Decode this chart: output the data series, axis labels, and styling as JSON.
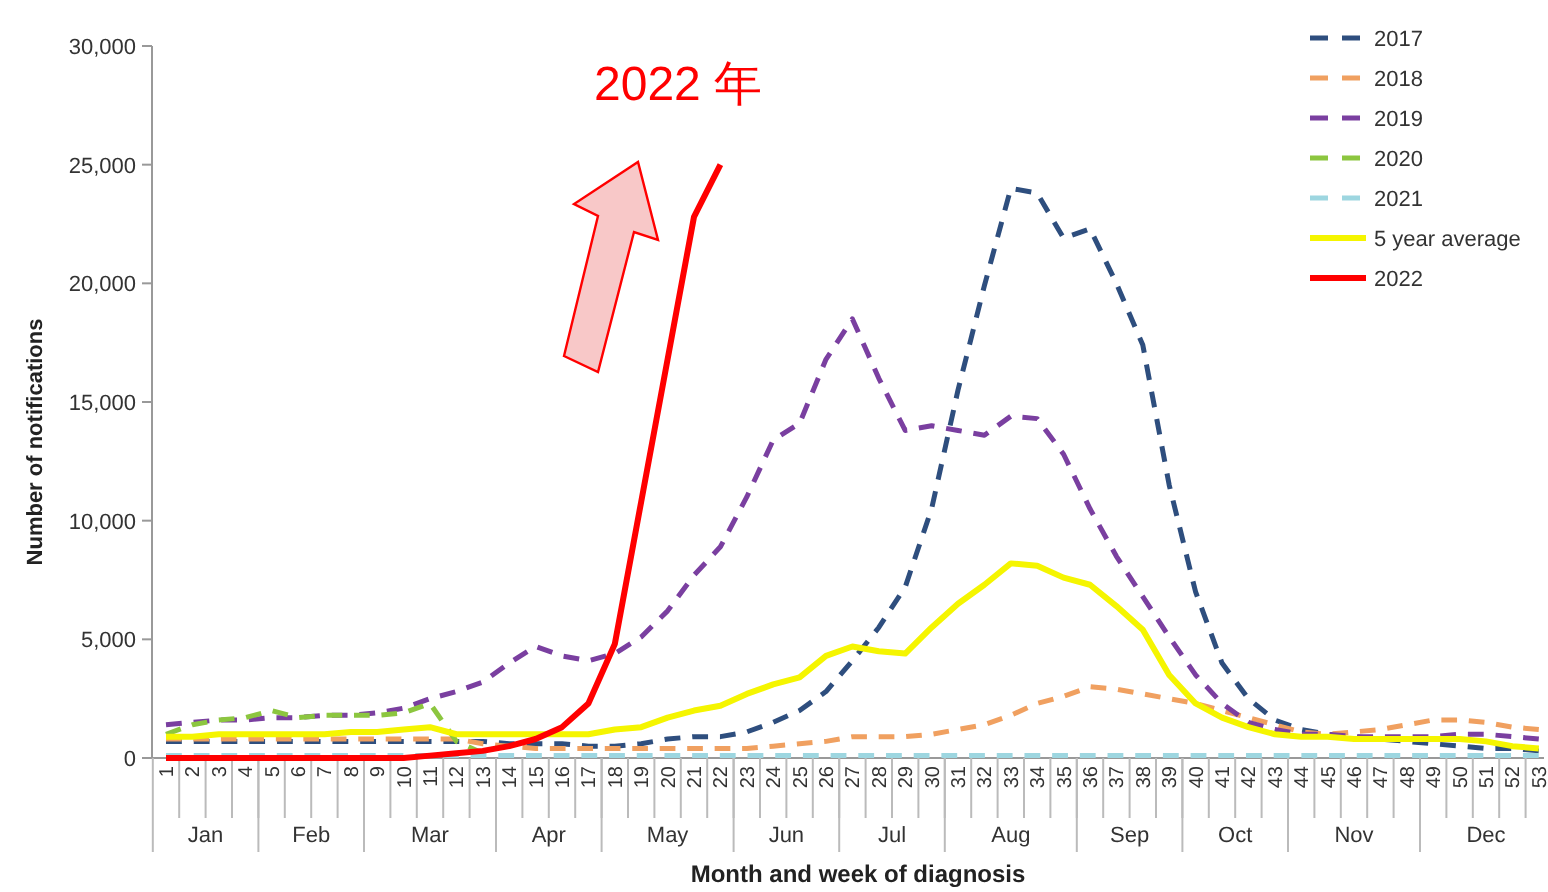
{
  "chart_data": {
    "type": "line",
    "xlabel": "Month and week of diagnosis",
    "ylabel": "Number of notifications",
    "categories": [
      "1",
      "2",
      "3",
      "4",
      "5",
      "6",
      "7",
      "8",
      "9",
      "10",
      "11",
      "12",
      "13",
      "14",
      "15",
      "16",
      "17",
      "18",
      "19",
      "20",
      "21",
      "22",
      "23",
      "24",
      "25",
      "26",
      "27",
      "28",
      "29",
      "30",
      "31",
      "32",
      "33",
      "34",
      "35",
      "36",
      "37",
      "38",
      "39",
      "40",
      "41",
      "42",
      "43",
      "44",
      "45",
      "46",
      "47",
      "48",
      "49",
      "50",
      "51",
      "52",
      "53"
    ],
    "ylim": [
      0,
      30000
    ],
    "yticks": [
      0,
      {
        "value": 5000,
        "label": "5,000"
      },
      {
        "value": 10000,
        "label": "10,000"
      },
      {
        "value": 15000,
        "label": "15,000"
      },
      {
        "value": 20000,
        "label": "20,000"
      },
      {
        "value": 25000,
        "label": "25,000"
      },
      {
        "value": 30000,
        "label": "30,000"
      }
    ],
    "grid": false,
    "legend": "top right",
    "marker": "none",
    "series": [
      {
        "name": "2017",
        "color": "#2e4e7e",
        "line_style": "dashed",
        "values": [
          700,
          700,
          700,
          700,
          700,
          700,
          700,
          700,
          700,
          700,
          700,
          700,
          700,
          600,
          600,
          600,
          500,
          500,
          600,
          800,
          900,
          900,
          1100,
          1500,
          2000,
          2800,
          4100,
          5500,
          7200,
          10500,
          15500,
          19900,
          24000,
          23800,
          21900,
          22300,
          20000,
          17400,
          11500,
          7000,
          4000,
          2500,
          1600,
          1200,
          1000,
          900,
          800,
          700,
          600,
          500,
          400,
          400,
          300
        ]
      },
      {
        "name": "2018",
        "color": "#f0a060",
        "line_style": "dashed",
        "values": [
          800,
          800,
          800,
          800,
          800,
          800,
          800,
          800,
          800,
          800,
          800,
          800,
          600,
          500,
          400,
          400,
          400,
          400,
          400,
          400,
          400,
          400,
          400,
          500,
          600,
          700,
          900,
          900,
          900,
          1000,
          1200,
          1400,
          1800,
          2300,
          2600,
          3000,
          2900,
          2700,
          2500,
          2300,
          2000,
          1700,
          1400,
          1100,
          1000,
          1100,
          1200,
          1400,
          1600,
          1600,
          1500,
          1300,
          1200
        ]
      },
      {
        "name": "2019",
        "color": "#7a3fa0",
        "line_style": "dashed",
        "values": [
          1400,
          1500,
          1600,
          1600,
          1700,
          1700,
          1800,
          1800,
          1900,
          2100,
          2500,
          2800,
          3200,
          4000,
          4700,
          4300,
          4100,
          4400,
          5100,
          6200,
          7700,
          8900,
          11000,
          13400,
          14100,
          16800,
          18500,
          16000,
          13800,
          14000,
          13800,
          13600,
          14400,
          14300,
          12800,
          10500,
          8500,
          6800,
          5100,
          3500,
          2300,
          1500,
          1200,
          1000,
          1000,
          900,
          900,
          900,
          900,
          1000,
          1000,
          900,
          800
        ]
      },
      {
        "name": "2020",
        "color": "#8cc63f",
        "line_style": "dashed",
        "values": [
          1000,
          1400,
          1600,
          1700,
          2000,
          1700,
          1800,
          1800,
          1800,
          1900,
          2300,
          700,
          200,
          null,
          null,
          null,
          null,
          null,
          null,
          null,
          null,
          null,
          null,
          null,
          null,
          null,
          null,
          null,
          null,
          null,
          null,
          null,
          null,
          null,
          null,
          null,
          null,
          null,
          null,
          null,
          null,
          null,
          null,
          null,
          null,
          null,
          null,
          null,
          null,
          null,
          null,
          null,
          null
        ]
      },
      {
        "name": "2021",
        "color": "#9dd6e0",
        "line_style": "dashed",
        "values": [
          100,
          100,
          100,
          100,
          100,
          100,
          100,
          100,
          100,
          100,
          100,
          100,
          100,
          100,
          100,
          100,
          100,
          100,
          100,
          100,
          100,
          100,
          100,
          100,
          100,
          100,
          100,
          100,
          100,
          100,
          100,
          100,
          100,
          100,
          100,
          100,
          100,
          100,
          100,
          100,
          100,
          100,
          100,
          100,
          100,
          100,
          100,
          100,
          100,
          100,
          100,
          100,
          100
        ]
      },
      {
        "name": "5 year average",
        "color": "#f5f500",
        "line_style": "solid",
        "values": [
          900,
          900,
          1000,
          1000,
          1000,
          1000,
          1000,
          1100,
          1100,
          1200,
          1300,
          1000,
          1000,
          1000,
          1000,
          1000,
          1000,
          1200,
          1300,
          1700,
          2000,
          2200,
          2700,
          3100,
          3400,
          4300,
          4700,
          4500,
          4400,
          5500,
          6500,
          7300,
          8200,
          8100,
          7600,
          7300,
          6400,
          5400,
          3500,
          2300,
          1700,
          1300,
          1000,
          900,
          900,
          800,
          800,
          800,
          800,
          800,
          700,
          500,
          400
        ]
      },
      {
        "name": "2022",
        "color": "#ff0000",
        "line_style": "solid",
        "values": [
          0,
          0,
          0,
          0,
          0,
          0,
          0,
          0,
          0,
          0,
          100,
          200,
          300,
          500,
          800,
          1300,
          2300,
          4800,
          10800,
          16800,
          22800,
          25000,
          null,
          null,
          null,
          null,
          null,
          null,
          null,
          null,
          null,
          null,
          null,
          null,
          null,
          null,
          null,
          null,
          null,
          null,
          null,
          null,
          null,
          null,
          null,
          null,
          null,
          null,
          null,
          null,
          null,
          null,
          null
        ]
      }
    ],
    "annotations": [
      "2022 年",
      "Jan",
      "Feb",
      "Mar",
      "Apr",
      "May",
      "Jun",
      "Jul",
      "Aug",
      "Sep",
      "Oct",
      "Nov",
      "Dec"
    ]
  }
}
